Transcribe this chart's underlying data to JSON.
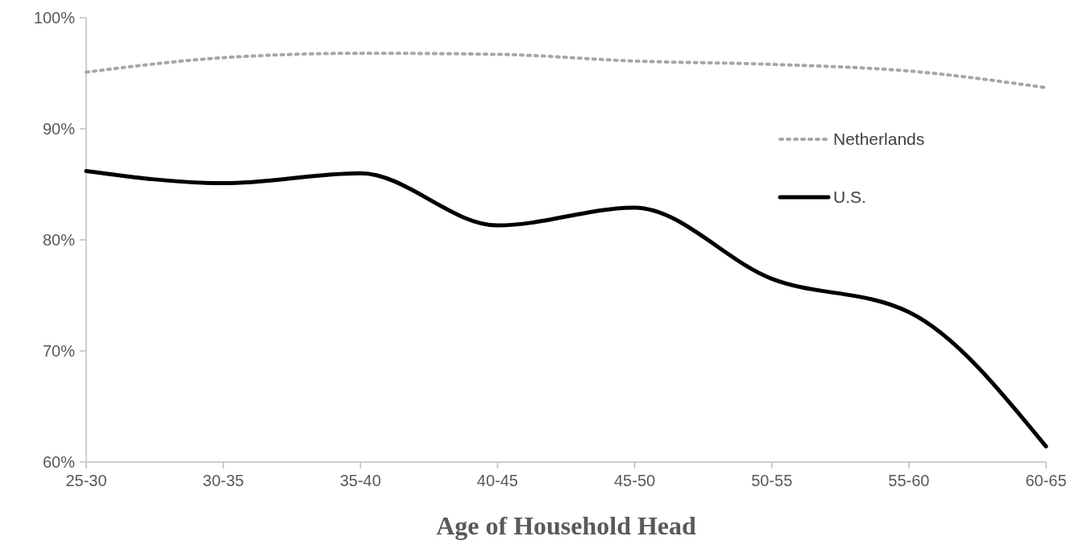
{
  "chart_data": {
    "type": "line",
    "xlabel": "Age of Household Head",
    "categories": [
      "25-30",
      "30-35",
      "35-40",
      "40-45",
      "45-50",
      "50-55",
      "55-60",
      "60-65"
    ],
    "series": [
      {
        "name": "Netherlands",
        "color": "#a6a6a6",
        "line_style": "dotted",
        "values": [
          95.1,
          96.4,
          96.8,
          96.7,
          96.1,
          95.8,
          95.2,
          93.7
        ]
      },
      {
        "name": "U.S.",
        "color": "#000000",
        "line_style": "solid",
        "values": [
          86.2,
          85.1,
          86.0,
          81.3,
          82.9,
          76.5,
          73.5,
          61.4
        ]
      }
    ],
    "ylim": [
      60,
      100
    ],
    "yticks": [
      {
        "value": 60,
        "label": "60%"
      },
      {
        "value": 70,
        "label": "70%"
      },
      {
        "value": 80,
        "label": "80%"
      },
      {
        "value": 90,
        "label": "90%"
      },
      {
        "value": 100,
        "label": "100%"
      }
    ],
    "grid": false,
    "legend": "right"
  }
}
